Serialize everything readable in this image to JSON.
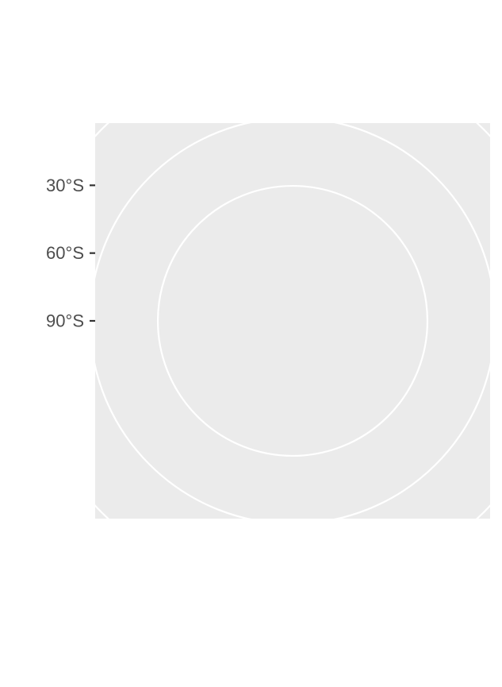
{
  "chart_data": {
    "type": "polar-map",
    "projection": "south-polar-azimuthal",
    "title": "",
    "xlabel": "",
    "ylabel": "",
    "latitude_range": [
      -90,
      -30
    ],
    "y_ticks": [
      {
        "value": -30,
        "label": "30°S"
      },
      {
        "value": -60,
        "label": "60°S"
      },
      {
        "value": -90,
        "label": "90°S"
      }
    ],
    "graticule_latitudes": [
      -30,
      -45,
      -60
    ],
    "panel_background": "#ebebeb",
    "grid_color": "#ffffff",
    "grid": true,
    "legend": "none"
  }
}
